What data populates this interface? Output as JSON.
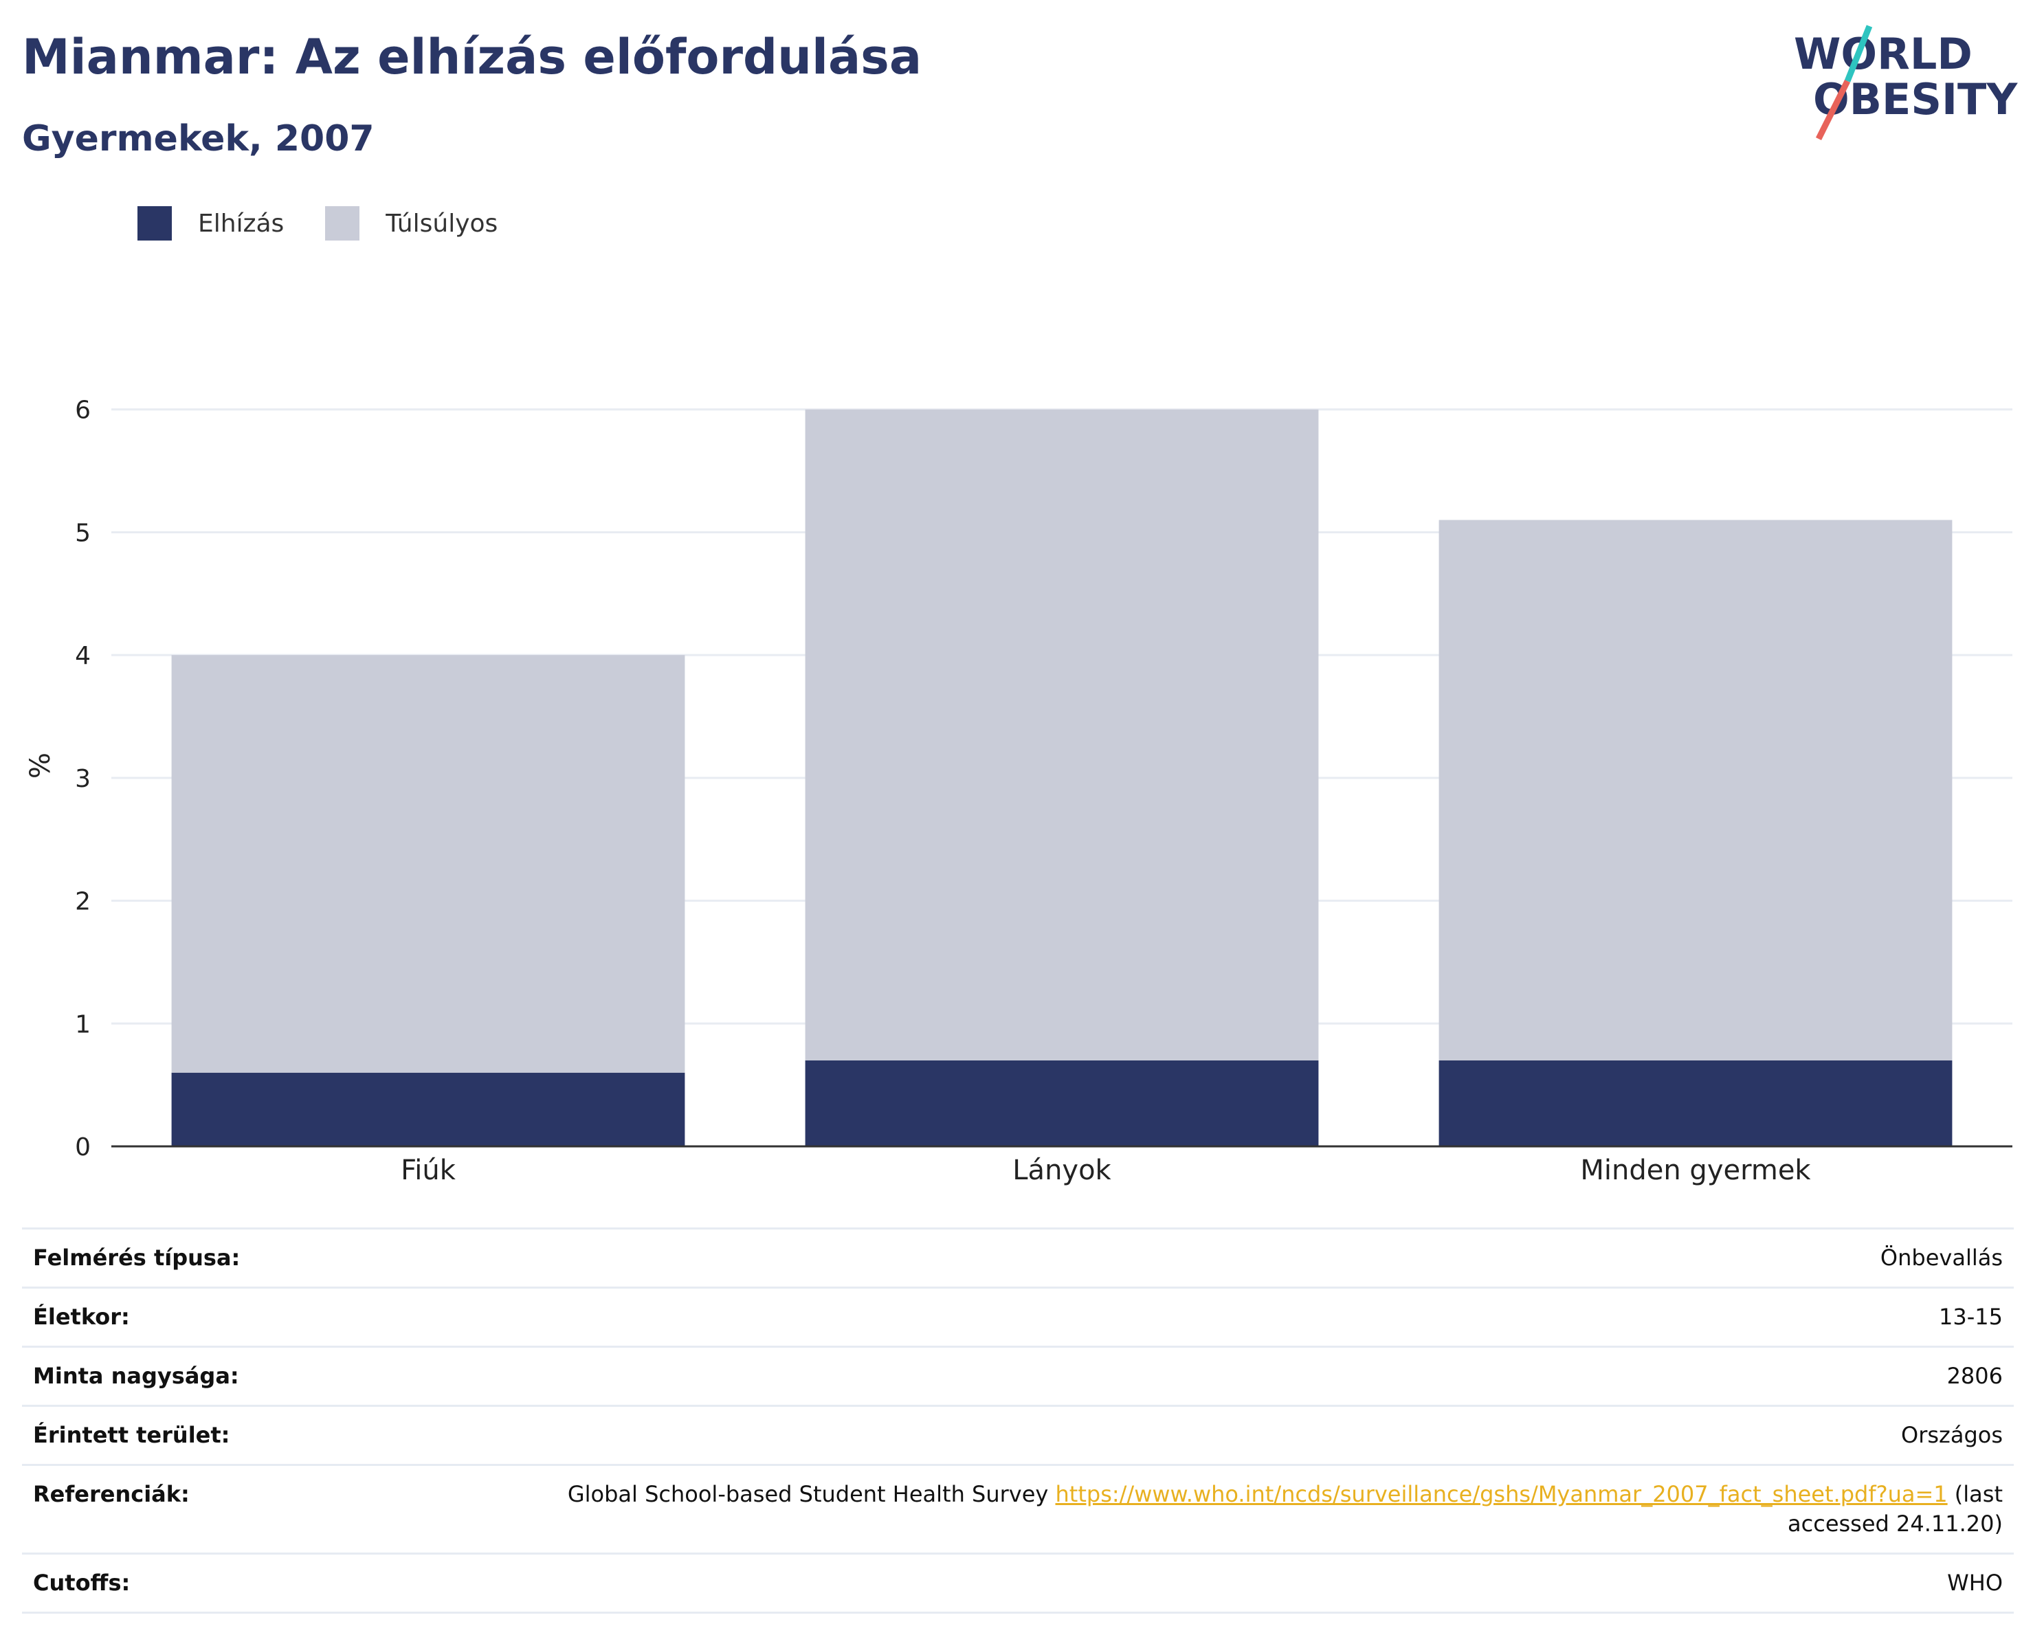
{
  "header": {
    "title": "Mianmar: Az elhízás előfordulása",
    "subtitle": "Gyermekek, 2007"
  },
  "logo": {
    "line1": "WORLD",
    "line2": "OBESITY",
    "colors": {
      "text": "#2a3665",
      "slash_top": "#2ec4c0",
      "slash_bottom": "#e8635a"
    }
  },
  "legend": {
    "items": [
      {
        "label": "Elhízás",
        "color": "#2a3665"
      },
      {
        "label": "Túlsúlyos",
        "color": "#c9ccd8"
      }
    ]
  },
  "chart_data": {
    "type": "bar",
    "stacked": true,
    "title": "Mianmar: Az elhízás előfordulása",
    "subtitle": "Gyermekek, 2007",
    "categories": [
      "Fiúk",
      "Lányok",
      "Minden gyermek"
    ],
    "series": [
      {
        "name": "Elhízás",
        "color": "#2a3665",
        "values": [
          0.6,
          0.7,
          0.7
        ]
      },
      {
        "name": "Túlsúlyos",
        "color": "#c9ccd8",
        "values": [
          3.4,
          5.3,
          4.4
        ]
      }
    ],
    "totals": [
      4.0,
      6.0,
      5.1
    ],
    "ylabel": "%",
    "xlabel": "",
    "ylim": [
      0,
      6.2
    ],
    "yticks": [
      0,
      1,
      2,
      3,
      4,
      5,
      6
    ],
    "grid": true,
    "legend_position": "top-left"
  },
  "info": {
    "rows": [
      {
        "key": "Felmérés típusa:",
        "value": "Önbevallás"
      },
      {
        "key": "Életkor:",
        "value": "13-15"
      },
      {
        "key": "Minta nagysága:",
        "value": "2806"
      },
      {
        "key": "Érintett terület:",
        "value": "Országos"
      }
    ],
    "reference": {
      "key": "Referenciák:",
      "text": "Global School-based Student Health Survey",
      "link": "https://www.who.int/ncds/surveillance/gshs/Myanmar_2007_fact_sheet.pdf?ua=1",
      "suffix": "(last accessed 24.11.20)"
    },
    "cutoffs": {
      "key": "Cutoffs:",
      "value": "WHO"
    }
  }
}
